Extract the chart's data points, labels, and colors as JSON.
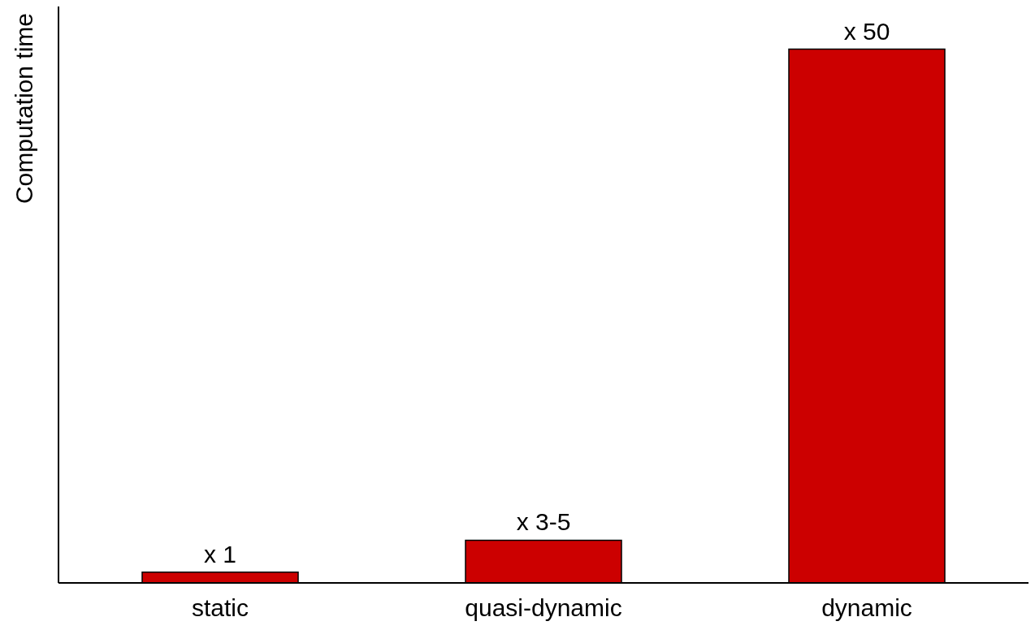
{
  "chart_data": {
    "type": "bar",
    "ylabel": "Computation time",
    "categories": [
      "static",
      "quasi-dynamic",
      "dynamic"
    ],
    "values": [
      1,
      4,
      50
    ],
    "value_labels": [
      "x 1",
      "x 3-5",
      "x 50"
    ],
    "color": "#cc0000",
    "ylim": [
      0,
      54
    ]
  }
}
